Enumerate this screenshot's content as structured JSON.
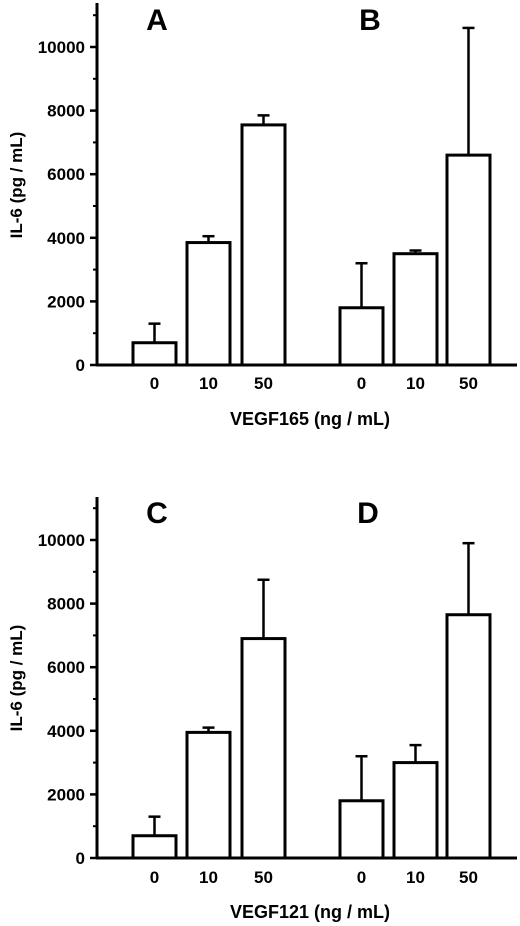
{
  "chart_data": [
    {
      "type": "bar",
      "panels": [
        {
          "label": "A",
          "categories": [
            "0",
            "10",
            "50"
          ],
          "values": [
            700,
            3850,
            7550
          ],
          "error": [
            600,
            200,
            300
          ]
        },
        {
          "label": "B",
          "categories": [
            "0",
            "10",
            "50"
          ],
          "values": [
            1800,
            3500,
            6600
          ],
          "error": [
            1400,
            100,
            4000
          ]
        }
      ],
      "ylabel": "IL-6 (pg / mL)",
      "xlabel": "VEGF165 (ng / mL)",
      "ylim": [
        0,
        11000
      ],
      "yticks": [
        "0",
        "2000",
        "4000",
        "6000",
        "8000",
        "10000"
      ],
      "grid": false
    },
    {
      "type": "bar",
      "panels": [
        {
          "label": "C",
          "categories": [
            "0",
            "10",
            "50"
          ],
          "values": [
            700,
            3950,
            6900
          ],
          "error": [
            600,
            150,
            1850
          ]
        },
        {
          "label": "D",
          "categories": [
            "0",
            "10",
            "50"
          ],
          "values": [
            1800,
            3000,
            7650
          ],
          "error": [
            1400,
            550,
            2250
          ]
        }
      ],
      "ylabel": "IL-6 (pg / mL)",
      "xlabel": "VEGF121 (ng / mL)",
      "ylim": [
        0,
        11000
      ],
      "yticks": [
        "0",
        "2000",
        "4000",
        "6000",
        "8000",
        "10000"
      ],
      "grid": false
    }
  ]
}
